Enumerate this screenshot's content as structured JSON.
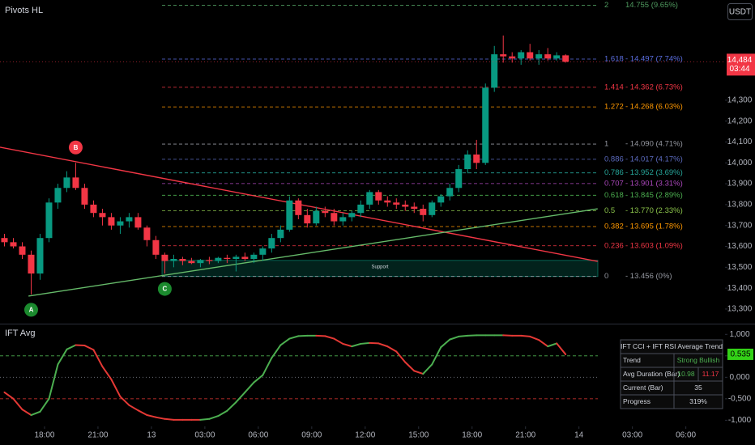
{
  "chart_data": [
    {
      "type": "candlestick",
      "title": "Pivots HL",
      "currency": "USDT",
      "x": [
        -2.25,
        -1.75,
        -1.25,
        -0.75,
        -0.25,
        0.25,
        0.75,
        1.25,
        1.75,
        2.25,
        2.75,
        3.25,
        3.75,
        4.25,
        4.75,
        5.25,
        5.75,
        6.25,
        6.75,
        7.25,
        7.75,
        8.25,
        8.75,
        9.25,
        9.75,
        10.25,
        10.75,
        11.25,
        11.75,
        12.25,
        12.75,
        13.25,
        13.75,
        14.25,
        14.75,
        15.25,
        15.75,
        16.25,
        16.75,
        17.25,
        17.75,
        18.25,
        18.75,
        19.25,
        19.75,
        20.25,
        20.75,
        21.25,
        21.75,
        22.25,
        22.75,
        23.25,
        23.75,
        24.25,
        24.75,
        25.25,
        25.75,
        26.25,
        26.75,
        27.25,
        27.75,
        28.25,
        28.75,
        29.25
      ],
      "open": [
        13640,
        13620,
        13600,
        13560,
        13470,
        13640,
        13810,
        13880,
        13930,
        13880,
        13800,
        13760,
        13740,
        13700,
        13720,
        13740,
        13690,
        13630,
        13560,
        13530,
        13540,
        13530,
        13520,
        13535,
        13530,
        13545,
        13540,
        13550,
        13540,
        13560,
        13590,
        13640,
        13680,
        13820,
        13750,
        13710,
        13770,
        13760,
        13720,
        13740,
        13760,
        13800,
        13860,
        13820,
        13810,
        13800,
        13790,
        13780,
        13750,
        13810,
        13840,
        13880,
        13970,
        14040,
        14000,
        14360,
        14520,
        14510,
        14500,
        14530,
        14500,
        14520,
        14500,
        14515
      ],
      "high": [
        13660,
        13640,
        13620,
        13580,
        13660,
        13830,
        13900,
        13960,
        14000,
        13900,
        13820,
        13780,
        13760,
        13740,
        13760,
        13760,
        13700,
        13650,
        13570,
        13560,
        13550,
        13545,
        13540,
        13550,
        13550,
        13560,
        13560,
        13570,
        13570,
        13600,
        13660,
        13700,
        13840,
        13830,
        13780,
        13790,
        13790,
        13780,
        13760,
        13770,
        13820,
        13870,
        13870,
        13840,
        13830,
        13820,
        13810,
        13800,
        13820,
        13850,
        13900,
        13990,
        14060,
        14110,
        14380,
        14560,
        14610,
        14530,
        14540,
        14570,
        14540,
        14550,
        14530,
        14520
      ],
      "low": [
        13600,
        13590,
        13540,
        13370,
        13440,
        13620,
        13780,
        13860,
        13870,
        13780,
        13740,
        13700,
        13680,
        13660,
        13690,
        13680,
        13600,
        13540,
        13470,
        13500,
        13510,
        13515,
        13500,
        13515,
        13520,
        13520,
        13480,
        13530,
        13520,
        13530,
        13570,
        13620,
        13670,
        13730,
        13690,
        13700,
        13740,
        13700,
        13700,
        13720,
        13740,
        13780,
        13800,
        13790,
        13780,
        13770,
        13760,
        13720,
        13740,
        13790,
        13820,
        13860,
        13950,
        13970,
        13990,
        14340,
        14480,
        14480,
        14470,
        14490,
        14470,
        14490,
        14490,
        14480
      ],
      "close": [
        13620,
        13600,
        13560,
        13470,
        13640,
        13810,
        13880,
        13930,
        13880,
        13800,
        13760,
        13740,
        13700,
        13720,
        13740,
        13690,
        13630,
        13560,
        13530,
        13540,
        13530,
        13520,
        13535,
        13530,
        13545,
        13540,
        13550,
        13540,
        13560,
        13590,
        13640,
        13680,
        13820,
        13750,
        13710,
        13770,
        13760,
        13720,
        13740,
        13760,
        13800,
        13860,
        13820,
        13810,
        13800,
        13790,
        13780,
        13750,
        13810,
        13840,
        13880,
        13970,
        14040,
        14000,
        14360,
        14520,
        14510,
        14500,
        14530,
        14500,
        14520,
        14500,
        14515,
        14484
      ],
      "up_color": "#089981",
      "down_color": "#f23645",
      "xlim": [
        -2.5,
        38.2
      ],
      "xticks": [
        {
          "value": 0,
          "label": "18:00"
        },
        {
          "value": 3,
          "label": "21:00"
        },
        {
          "value": 6,
          "label": "13"
        },
        {
          "value": 9,
          "label": "03:00"
        },
        {
          "value": 12,
          "label": "06:00"
        },
        {
          "value": 15,
          "label": "09:00"
        },
        {
          "value": 18,
          "label": "12:00"
        },
        {
          "value": 21,
          "label": "15:00"
        },
        {
          "value": 24,
          "label": "18:00"
        },
        {
          "value": 27,
          "label": "21:00"
        },
        {
          "value": 30,
          "label": "14"
        },
        {
          "value": 33,
          "label": "03:00"
        },
        {
          "value": 36,
          "label": "06:00"
        }
      ],
      "ylim": [
        13230,
        14780
      ],
      "yticks": [
        {
          "value": 13300,
          "label": "13,300"
        },
        {
          "value": 13400,
          "label": "13,400"
        },
        {
          "value": 13500,
          "label": "13,500"
        },
        {
          "value": 13600,
          "label": "13,600"
        },
        {
          "value": 13700,
          "label": "13,700"
        },
        {
          "value": 13800,
          "label": "13,800"
        },
        {
          "value": 13900,
          "label": "13,900"
        },
        {
          "value": 14000,
          "label": "14,000"
        },
        {
          "value": 14100,
          "label": "14,100"
        },
        {
          "value": 14200,
          "label": "14,200"
        },
        {
          "value": 14300,
          "label": "14,300"
        }
      ],
      "last_price": {
        "value": 14484,
        "label": "14,484"
      },
      "countdown": "03:44",
      "trendlines": [
        {
          "color": "#f23645",
          "x": [
            -2.5,
            31.05
          ],
          "values": [
            14075,
            13528
          ]
        },
        {
          "color": "#66bb6a",
          "x": [
            -0.9,
            31.05
          ],
          "values": [
            13362,
            13780
          ]
        }
      ],
      "support": {
        "label": "Support",
        "top": 13533,
        "bottom": 13456,
        "color": "#089981"
      },
      "pivots": [
        {
          "label": "A",
          "x": -0.75,
          "price": 13370,
          "position": "below",
          "color": "#1b8a2e"
        },
        {
          "label": "B",
          "x": 1.75,
          "price": 14000,
          "position": "above",
          "color": "#f23645"
        },
        {
          "label": "C",
          "x": 6.75,
          "price": 13470,
          "position": "below",
          "color": "#1b8a2e"
        }
      ],
      "fib_levels": [
        {
          "ratio": 2,
          "price": 14755,
          "label": "14.755 (9.65%)",
          "color": "#4f9a5f"
        },
        {
          "ratio": 1.618,
          "price": 14497,
          "label": "- 14.497 (7.74%)",
          "color": "#5b6ee1"
        },
        {
          "ratio": 1.414,
          "price": 14362,
          "label": "- 14.362 (6.73%)",
          "color": "#f23645"
        },
        {
          "ratio": 1.272,
          "price": 14268,
          "label": "- 14.268 (6.03%)",
          "color": "#ff9800"
        },
        {
          "ratio": 1,
          "price": 14090,
          "label": "- 14.090 (4.71%)",
          "color": "#9598a1"
        },
        {
          "ratio": 0.886,
          "price": 14017,
          "label": "- 14.017 (4.17%)",
          "color": "#5c6bc0"
        },
        {
          "ratio": 0.786,
          "price": 13952,
          "label": "- 13.952 (3.69%)",
          "color": "#26a69a"
        },
        {
          "ratio": 0.707,
          "price": 13901,
          "label": "- 13.901 (3.31%)",
          "color": "#ab47bc"
        },
        {
          "ratio": 0.618,
          "price": 13845,
          "label": "- 13.845 (2.89%)",
          "color": "#4caf50"
        },
        {
          "ratio": 0.5,
          "price": 13770,
          "label": "- 13.770 (2.33%)",
          "color": "#8bc34a"
        },
        {
          "ratio": 0.382,
          "price": 13695,
          "label": "- 13.695 (1.78%)",
          "color": "#ff9800"
        },
        {
          "ratio": 0.236,
          "price": 13603,
          "label": "- 13.603 (1.09%)",
          "color": "#f23645"
        },
        {
          "ratio": 0,
          "price": 13456,
          "label": "- 13.456 (0%)",
          "color": "#9598a1"
        }
      ]
    },
    {
      "type": "line",
      "title": "IFT Avg",
      "x": [
        -2.25,
        -1.75,
        -1.25,
        -0.75,
        -0.25,
        0.25,
        0.75,
        1.25,
        1.75,
        2.25,
        2.75,
        3.25,
        3.75,
        4.25,
        4.75,
        5.25,
        5.75,
        6.25,
        6.75,
        7.25,
        7.75,
        8.25,
        8.75,
        9.25,
        9.75,
        10.25,
        10.75,
        11.25,
        11.75,
        12.25,
        12.75,
        13.25,
        13.75,
        14.25,
        14.75,
        15.25,
        15.75,
        16.25,
        16.75,
        17.25,
        17.75,
        18.25,
        18.75,
        19.25,
        19.75,
        20.25,
        20.75,
        21.25,
        21.75,
        22.25,
        22.75,
        23.25,
        23.75,
        24.25,
        24.75,
        25.25,
        25.75,
        26.25,
        26.75,
        27.25,
        27.75,
        28.25,
        28.75,
        29.25
      ],
      "values": [
        -0.35,
        -0.5,
        -0.75,
        -0.88,
        -0.8,
        -0.5,
        0.3,
        0.65,
        0.75,
        0.74,
        0.64,
        0.25,
        -0.05,
        -0.45,
        -0.65,
        -0.77,
        -0.88,
        -0.93,
        -0.97,
        -0.99,
        -0.99,
        -0.99,
        -0.99,
        -0.97,
        -0.9,
        -0.78,
        -0.58,
        -0.35,
        -0.12,
        0.05,
        0.45,
        0.75,
        0.9,
        0.96,
        0.97,
        0.97,
        0.96,
        0.9,
        0.78,
        0.72,
        0.78,
        0.8,
        0.79,
        0.72,
        0.6,
        0.35,
        0.15,
        0.08,
        0.3,
        0.7,
        0.88,
        0.95,
        0.97,
        0.98,
        0.98,
        0.98,
        0.98,
        0.97,
        0.97,
        0.95,
        0.87,
        0.72,
        0.79,
        0.535
      ],
      "up_color": "#4caf50",
      "down_color": "#e53935",
      "ylim": [
        -1.2,
        1.25
      ],
      "yticks": [
        {
          "value": -1,
          "label": "-1,000"
        },
        {
          "value": -0.5,
          "label": "-0,500"
        },
        {
          "value": 0,
          "label": "0,000"
        },
        {
          "value": 0.5,
          "label": "0,500"
        },
        {
          "value": 1,
          "label": "1,000"
        }
      ],
      "levels": [
        {
          "value": 0.5,
          "color": "#4caf50"
        },
        {
          "value": 0,
          "color": "#787b86"
        },
        {
          "value": -0.5,
          "color": "#e53935"
        }
      ],
      "last_value": 0.535,
      "table": {
        "title": "IFT CCI + IFT RSI Average Trend",
        "rows": [
          [
            "Trend",
            "Strong Bullish"
          ],
          [
            "Avg Duration (Bar)",
            10.98,
            11.17
          ],
          [
            "Current (Bar)",
            35
          ],
          [
            "Progress",
            "319%"
          ]
        ]
      }
    }
  ]
}
